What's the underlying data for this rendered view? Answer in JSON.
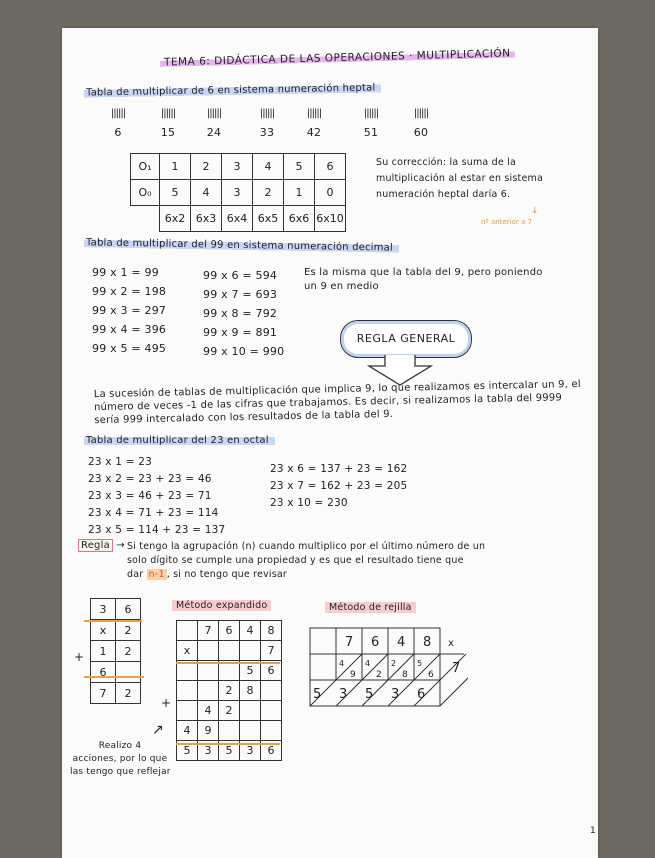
{
  "title": "TEMA 6: DIDÁCTICA DE LAS OPERACIONES · MULTIPLICACIÓN",
  "section1": {
    "heading": "Tabla de multiplicar de 6 en sistema numeración heptal",
    "tallies": [
      "||||||",
      "||||||",
      "||||||",
      "||||||",
      "||||||",
      "||||||",
      "||||||"
    ],
    "tally_numbers": [
      "6",
      "15",
      "24",
      "33",
      "42",
      "51",
      "60"
    ],
    "table": {
      "row1": [
        "O₁",
        "1",
        "2",
        "3",
        "4",
        "5",
        "6"
      ],
      "row2": [
        "O₀",
        "5",
        "4",
        "3",
        "2",
        "1",
        "0"
      ],
      "row3": [
        "",
        "6x2",
        "6x3",
        "6x4",
        "6x5",
        "6x6",
        "6x10"
      ]
    },
    "correction": [
      "Su corrección: la suma de la",
      "multiplicación al estar en sistema",
      "numeración heptal daría 6."
    ],
    "note_arrow": "↓",
    "note": "nº anterior a 7"
  },
  "section2": {
    "heading": "Tabla de multiplicar del 99 en sistema numeración decimal",
    "col1": [
      "99 x 1 = 99",
      "99 x 2 = 198",
      "99 x 3 = 297",
      "99 x 4 = 396",
      "99 x 5 = 495"
    ],
    "col2": [
      "99 x 6 = 594",
      "99 x 7 = 693",
      "99 x 8 = 792",
      "99 x 9 = 891",
      "99 x 10 = 990"
    ],
    "remark": [
      "Es la misma que la tabla del 9, pero poniendo",
      "un 9 en medio"
    ],
    "cloud": "REGLA GENERAL",
    "paragraph": "La sucesión de tablas de multiplicación que implica 9, lo que realizamos es intercalar un 9, el número de veces -1 de las cifras que trabajamos. Es decir, si realizamos la tabla del 9999 sería 999 intercalado con los resultados de la tabla del 9."
  },
  "section3": {
    "heading": "Tabla de multiplicar del 23 en octal",
    "col1": [
      "23 x 1 = 23",
      "23 x 2 = 23 + 23 = 46",
      "23 x 3 = 46 + 23 = 71",
      "23 x 4 = 71 + 23 = 114",
      "23 x 5 = 114 + 23 = 137"
    ],
    "col2": [
      "23 x 6 = 137 + 23 = 162",
      "23 x 7 = 162 + 23 = 205",
      "23 x 10 = 230"
    ],
    "regla_label": "Regla",
    "regla_arrow": "→",
    "regla_lines": [
      "Si tengo la agrupación (n) cuando multiplico por el último número de un",
      "solo dígito se cumple una propiedad y es que el resultado tiene que"
    ],
    "regla_last_pre": "dar",
    "regla_highlight": "n-1",
    "regla_last_post": ", si no tengo que revisar"
  },
  "small_table": {
    "rows": [
      [
        "",
        "3",
        "6"
      ],
      [
        "x",
        "",
        "2"
      ],
      [
        "+",
        "1",
        "2"
      ],
      [
        "",
        "6",
        ""
      ],
      [
        "",
        "7",
        "2"
      ]
    ]
  },
  "expanded": {
    "label": "Método expandido",
    "rows": [
      [
        "",
        "7",
        "6",
        "4",
        "8"
      ],
      [
        "x",
        "",
        "",
        "",
        "7"
      ],
      [
        "",
        "",
        "",
        "5",
        "6"
      ],
      [
        "",
        "",
        "2",
        "8",
        ""
      ],
      [
        "",
        "4",
        "2",
        "",
        ""
      ],
      [
        "4",
        "9",
        "",
        "",
        ""
      ],
      [
        "5",
        "3",
        "5",
        "3",
        "6"
      ]
    ],
    "plus": "+",
    "arrow": "↗",
    "note": [
      "Realizo 4",
      "acciones, por lo que",
      "las tengo que reflejar"
    ]
  },
  "grid_method": {
    "label": "Método de rejilla",
    "top": [
      "",
      "7",
      "6",
      "4",
      "8"
    ],
    "times": "x",
    "multiplier": "7",
    "cells": [
      [
        "4",
        "9"
      ],
      [
        "4",
        "2"
      ],
      [
        "2",
        "8"
      ],
      [
        "5",
        "6"
      ]
    ],
    "result": [
      "5",
      "3",
      "5",
      "3",
      "6"
    ]
  },
  "page_number": "1"
}
